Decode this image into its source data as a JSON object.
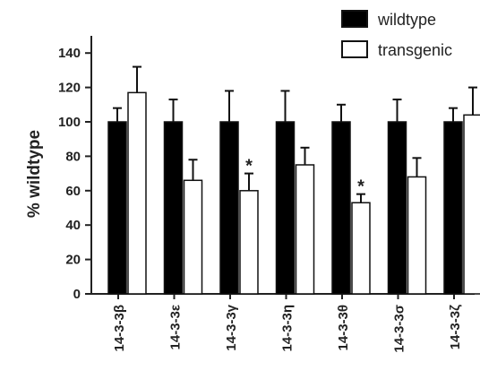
{
  "chart_data": {
    "type": "bar",
    "ylabel": "% wildtype",
    "ylim": [
      0,
      150
    ],
    "yticks": [
      0,
      20,
      40,
      60,
      80,
      100,
      120,
      140
    ],
    "categories": [
      "14-3-3β",
      "14-3-3ε",
      "14-3-3γ",
      "14-3-3η",
      "14-3-3θ",
      "14-3-3σ",
      "14-3-3ζ"
    ],
    "series": [
      {
        "name": "wildtype",
        "fill": "#000000",
        "values": [
          100,
          100,
          100,
          100,
          100,
          100,
          100
        ],
        "errors": [
          8,
          13,
          18,
          18,
          10,
          13,
          8
        ]
      },
      {
        "name": "transgenic",
        "fill": "#ffffff",
        "values": [
          117,
          66,
          60,
          75,
          53,
          68,
          104
        ],
        "errors": [
          15,
          12,
          10,
          10,
          5,
          11,
          16
        ]
      }
    ],
    "annotations": [
      {
        "category_index": 2,
        "series_index": 1,
        "text": "*"
      },
      {
        "category_index": 4,
        "series_index": 1,
        "text": "*"
      }
    ],
    "legend": "top-right",
    "grid": false
  }
}
